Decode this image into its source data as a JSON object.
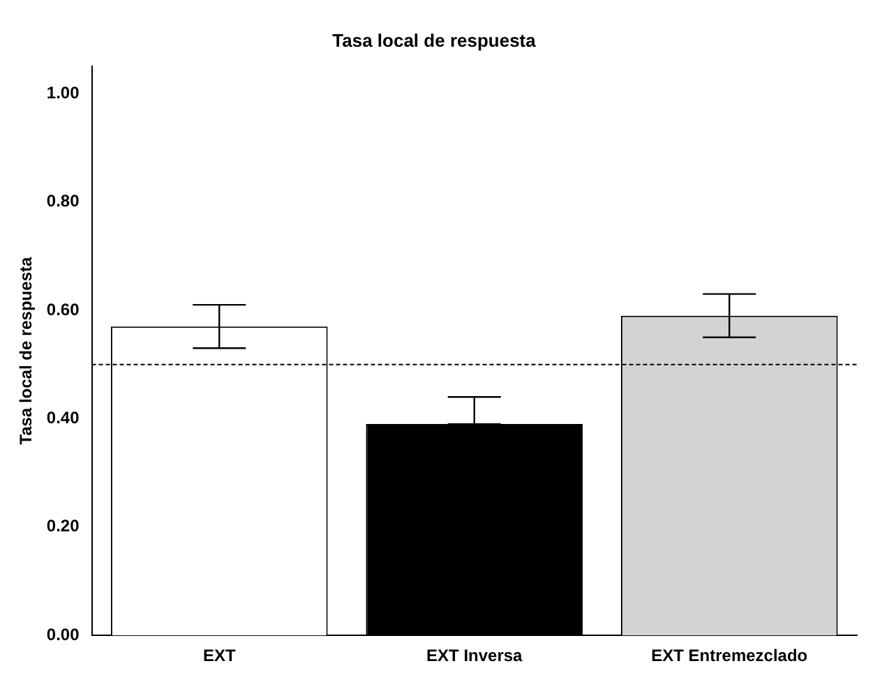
{
  "chart_data": {
    "type": "bar",
    "title": "Tasa local de respuesta",
    "ylabel": "Tasa local de respuesta",
    "categories": [
      "EXT",
      "EXT Inversa",
      "EXT Entremezclado"
    ],
    "values": [
      0.57,
      0.39,
      0.59
    ],
    "colors": [
      "#ffffff",
      "#000000",
      "#d3d3d3"
    ],
    "errors": [
      [
        0.53,
        0.61
      ],
      [
        0.39,
        0.44
      ],
      [
        0.55,
        0.63
      ]
    ],
    "ylim": [
      0,
      1.05
    ],
    "yticks": [
      {
        "value": 0,
        "label": "0.00"
      },
      {
        "value": 0.2,
        "label": "0.20"
      },
      {
        "value": 0.4,
        "label": "0.40"
      },
      {
        "value": 0.6,
        "label": "0.60"
      },
      {
        "value": 0.8,
        "label": "0.80"
      },
      {
        "value": 1,
        "label": "1.00"
      }
    ],
    "ref_lines": [
      {
        "axis": "y",
        "value": 0.5,
        "line_style": "dashed"
      }
    ],
    "grid": false,
    "legend": false
  }
}
